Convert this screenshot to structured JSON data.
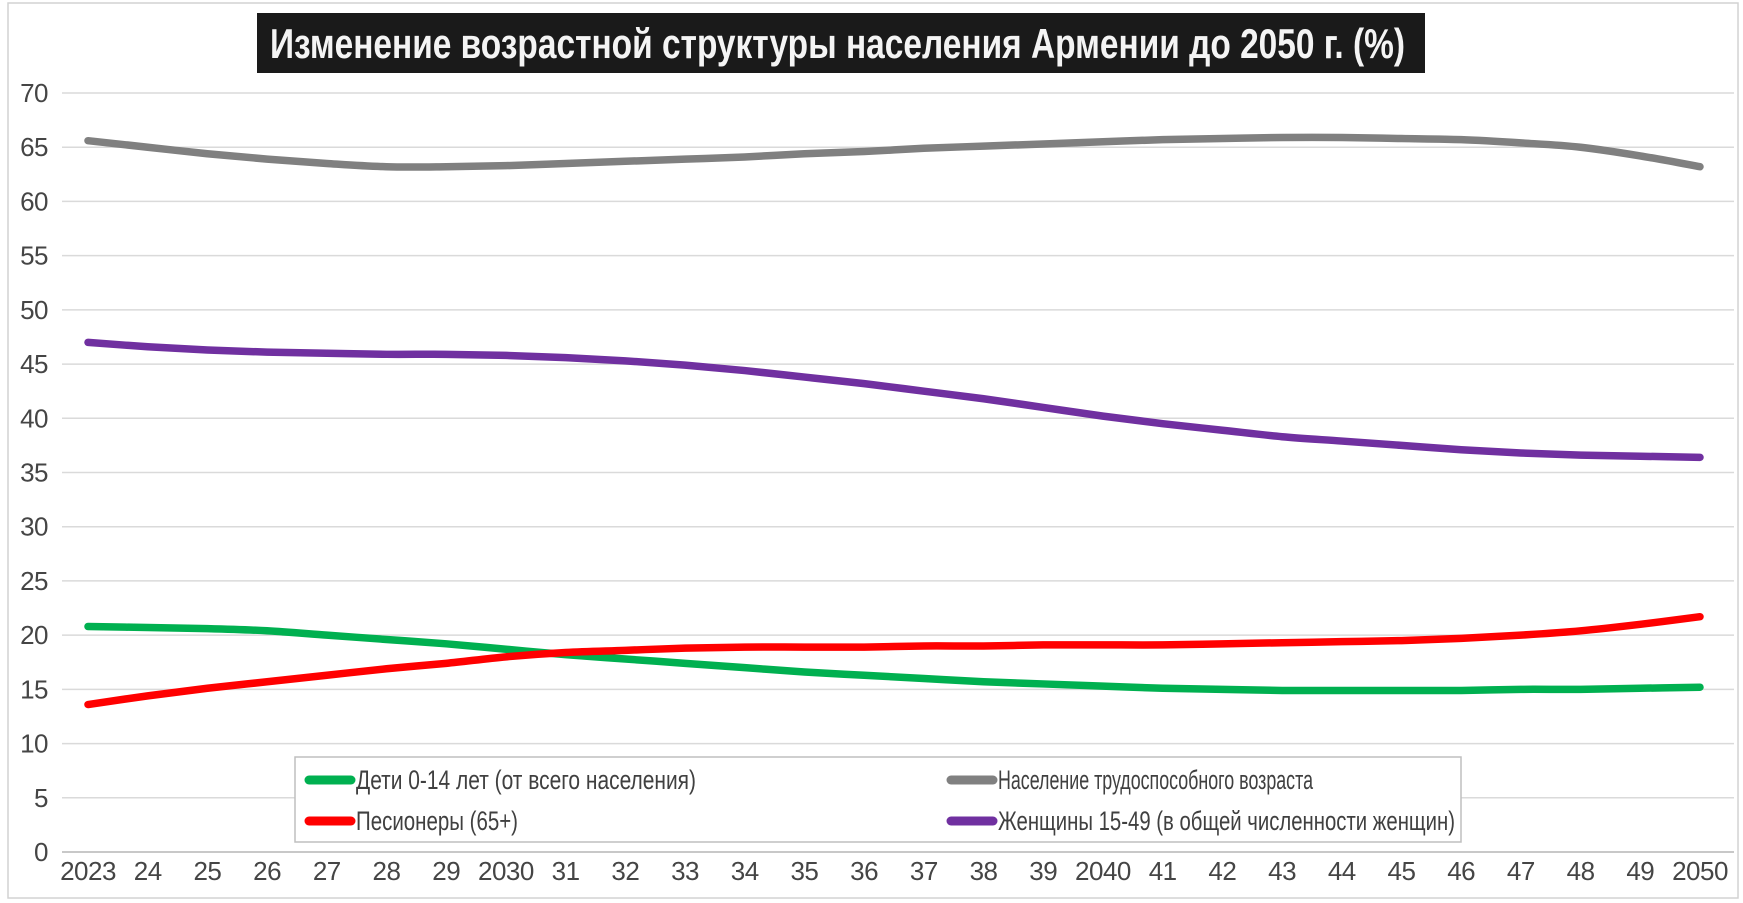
{
  "title": {
    "text": "Изменение возрастной структуры населения Армении до 2050 г. (%)",
    "bg": "#1a1a1a",
    "color": "#f4f4f4"
  },
  "chart_data": {
    "type": "line",
    "x_labels": [
      "2023",
      "24",
      "25",
      "26",
      "27",
      "28",
      "29",
      "2030",
      "31",
      "32",
      "33",
      "34",
      "35",
      "36",
      "37",
      "38",
      "39",
      "2040",
      "41",
      "42",
      "43",
      "44",
      "45",
      "46",
      "47",
      "48",
      "49",
      "2050"
    ],
    "ylim": [
      0,
      70
    ],
    "y_tick_step": 5,
    "grid": true,
    "legend_position": "bottom",
    "line_smoothing": true,
    "colors": {
      "grid": "#dadada",
      "zero_line": "#c8c8c8",
      "frame": "#d2d2d2",
      "axis_text": "#454545"
    },
    "series": [
      {
        "name": "Дети 0-14 лет (от всего населения)",
        "color": "#00B050",
        "values": [
          20.8,
          20.7,
          20.6,
          20.4,
          20.0,
          19.6,
          19.2,
          18.7,
          18.2,
          17.8,
          17.4,
          17.0,
          16.6,
          16.3,
          16.0,
          15.7,
          15.5,
          15.3,
          15.1,
          15.0,
          14.9,
          14.9,
          14.9,
          14.9,
          15.0,
          15.0,
          15.1,
          15.2
        ]
      },
      {
        "name": "Песионеры (65+)",
        "color": "#FF0000",
        "values": [
          13.6,
          14.4,
          15.1,
          15.7,
          16.3,
          16.9,
          17.4,
          18.0,
          18.4,
          18.6,
          18.8,
          18.9,
          18.9,
          18.9,
          19.0,
          19.0,
          19.1,
          19.1,
          19.1,
          19.2,
          19.3,
          19.4,
          19.5,
          19.7,
          20.0,
          20.4,
          21.0,
          21.7
        ]
      },
      {
        "name": "Население трудоспособного возраста",
        "color": "#808080",
        "values": [
          65.6,
          65.0,
          64.4,
          63.9,
          63.5,
          63.2,
          63.2,
          63.3,
          63.5,
          63.7,
          63.9,
          64.1,
          64.4,
          64.6,
          64.9,
          65.1,
          65.3,
          65.5,
          65.7,
          65.8,
          65.9,
          65.9,
          65.8,
          65.7,
          65.4,
          65.0,
          64.2,
          63.2
        ]
      },
      {
        "name": "Женщины 15-49 (в общей численности женщин)",
        "color": "#7030A0",
        "values": [
          47.0,
          46.6,
          46.3,
          46.1,
          46.0,
          45.9,
          45.9,
          45.8,
          45.6,
          45.3,
          44.9,
          44.4,
          43.8,
          43.2,
          42.5,
          41.8,
          41.0,
          40.2,
          39.5,
          38.9,
          38.3,
          37.9,
          37.5,
          37.1,
          36.8,
          36.6,
          36.5,
          36.4
        ]
      }
    ]
  }
}
